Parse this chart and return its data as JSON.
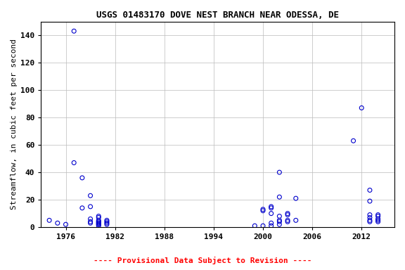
{
  "title": "USGS 01483170 DOVE NEST BRANCH NEAR ODESSA, DE",
  "ylabel": "Streamflow, in cubic feet per second",
  "footnote": "---- Provisional Data Subject to Revision ----",
  "xlim": [
    1973,
    2016
  ],
  "ylim": [
    0,
    150
  ],
  "yticks": [
    0,
    20,
    40,
    60,
    80,
    100,
    120,
    140
  ],
  "xticks": [
    1976,
    1982,
    1988,
    1994,
    2000,
    2006,
    2012
  ],
  "x": [
    1974,
    1975,
    1976,
    1977,
    1977,
    1978,
    1978,
    1979,
    1979,
    1979,
    1979,
    1979,
    1980,
    1980,
    1980,
    1980,
    1980,
    1980,
    1980,
    1980,
    1980,
    1980,
    1981,
    1981,
    1981,
    1981,
    1999,
    2000,
    2000,
    2000,
    2001,
    2001,
    2001,
    2001,
    2001,
    2002,
    2002,
    2002,
    2002,
    2002,
    2002,
    2003,
    2003,
    2003,
    2003,
    2004,
    2004,
    2011,
    2012,
    2013,
    2013,
    2013,
    2013,
    2013,
    2013,
    2014,
    2014,
    2014,
    2014,
    2014
  ],
  "y": [
    5,
    3,
    2,
    143,
    47,
    36,
    14,
    23,
    15,
    6,
    4,
    3,
    8,
    7,
    5,
    4,
    4,
    3,
    3,
    2,
    2,
    1,
    5,
    4,
    3,
    2,
    1,
    13,
    12,
    1,
    15,
    14,
    10,
    3,
    1,
    40,
    22,
    8,
    5,
    4,
    2,
    10,
    9,
    5,
    4,
    21,
    5,
    63,
    87,
    27,
    19,
    9,
    7,
    5,
    4,
    9,
    8,
    6,
    5,
    4
  ],
  "marker_color": "#0000CC",
  "marker_size": 18,
  "marker_lw": 0.8,
  "bg_color": "#ffffff",
  "grid_color": "#bbbbbb",
  "title_fontsize": 9,
  "label_fontsize": 8,
  "tick_fontsize": 8,
  "footnote_color": "#ff0000",
  "footnote_fontsize": 8
}
